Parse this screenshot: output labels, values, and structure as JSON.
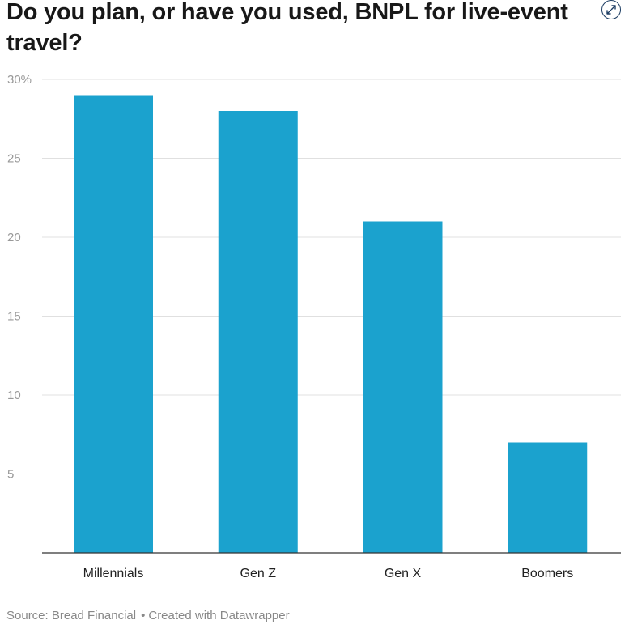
{
  "chart_data": {
    "type": "bar",
    "title": "Do you plan, or have you used, BNPL for live-event travel?",
    "categories": [
      "Millennials",
      "Gen Z",
      "Gen X",
      "Boomers"
    ],
    "values": [
      29,
      28,
      21,
      7
    ],
    "unit": "%",
    "ylim": [
      0,
      30
    ],
    "yticks": [
      5,
      10,
      15,
      20,
      25,
      30
    ],
    "ytick_labels": [
      "5",
      "10",
      "15",
      "20",
      "25",
      "30%"
    ],
    "xlabel": "",
    "ylabel": "",
    "grid": true,
    "bar_color": "#1ba2ce",
    "legend": "none"
  },
  "footer": {
    "source_label": "Source: Bread Financial",
    "separator": "•",
    "created_with": "Created with Datawrapper"
  },
  "controls": {
    "expand_icon": "expand-arrows-icon"
  },
  "colors": {
    "bar": "#1ba2ce",
    "gridline": "#e0e0e0",
    "axis": "#333333",
    "tick_text": "#999999",
    "title_text": "#181818",
    "footer_text": "#888888"
  }
}
